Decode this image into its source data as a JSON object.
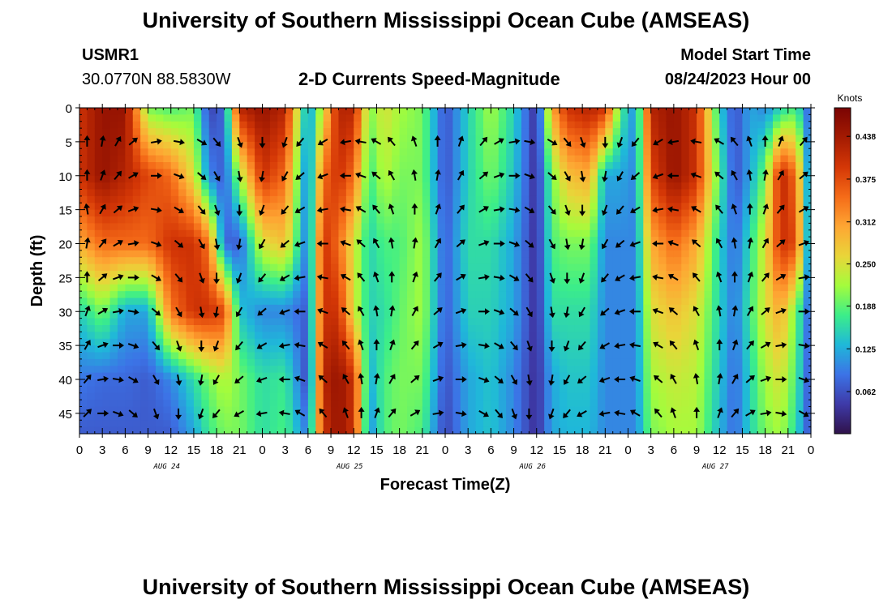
{
  "header": {
    "title": "University of Southern Mississippi Ocean Cube (AMSEAS)",
    "station": "USMR1",
    "coords": "30.0770N  88.5830W",
    "plot_title": "2-D Currents Speed-Magnitude",
    "model_start_label": "Model Start Time",
    "model_start_value": "08/24/2023 Hour 00"
  },
  "footer": {
    "title": "University of Southern Mississippi Ocean Cube (AMSEAS)"
  },
  "chart_data": {
    "type": "heatmap",
    "title": "2-D Currents Speed-Magnitude",
    "xlabel": "Forecast Time(Z)",
    "ylabel": "Depth (ft)",
    "x_range_hours": [
      0,
      96
    ],
    "y_range_ft": [
      0,
      48
    ],
    "x_tick_labels": [
      "0",
      "3",
      "6",
      "9",
      "12",
      "15",
      "18",
      "21",
      "0",
      "3",
      "6",
      "9",
      "12",
      "15",
      "18",
      "21",
      "0",
      "3",
      "6",
      "9",
      "12",
      "15",
      "18",
      "21",
      "0",
      "3",
      "6",
      "9",
      "12",
      "15",
      "18",
      "21",
      "0"
    ],
    "y_ticks": [
      0,
      5,
      10,
      15,
      20,
      25,
      30,
      35,
      40,
      45
    ],
    "date_labels": [
      {
        "label": "AUG 24",
        "hour": 12
      },
      {
        "label": "AUG 25",
        "hour": 36
      },
      {
        "label": "AUG 26",
        "hour": 60
      },
      {
        "label": "AUG 27",
        "hour": 84
      }
    ],
    "colorbar": {
      "unit": "Knots",
      "range": [
        0.0,
        0.48
      ],
      "tick_labels": [
        "0.062",
        "0.125",
        "0.188",
        "0.250",
        "0.312",
        "0.375",
        "0.438"
      ],
      "colors": [
        "#30124a",
        "#3e3aa8",
        "#3c73e6",
        "#1fb8d9",
        "#3cee89",
        "#a4fc3c",
        "#e9d539",
        "#fea633",
        "#f56b18",
        "#d43706",
        "#a41b02",
        "#7a0403"
      ]
    },
    "speed_profiles_knots": {
      "hours": [
        0,
        3,
        6,
        9,
        12,
        15,
        17,
        19,
        21,
        24,
        27,
        30,
        32,
        34,
        36,
        38,
        40,
        42,
        45,
        48,
        51,
        54,
        57,
        60,
        62,
        64,
        67,
        69,
        71,
        73,
        75,
        78,
        81,
        84,
        86,
        88,
        90,
        92,
        94,
        96
      ],
      "depths_ft": [
        0,
        10,
        20,
        30,
        40,
        48
      ],
      "values": [
        [
          0.4,
          0.4,
          0.3,
          0.15,
          0.09,
          0.07
        ],
        [
          0.45,
          0.45,
          0.35,
          0.2,
          0.08,
          0.07
        ],
        [
          0.45,
          0.42,
          0.35,
          0.12,
          0.08,
          0.07
        ],
        [
          0.2,
          0.38,
          0.35,
          0.12,
          0.07,
          0.07
        ],
        [
          0.18,
          0.35,
          0.4,
          0.34,
          0.1,
          0.07
        ],
        [
          0.2,
          0.25,
          0.4,
          0.4,
          0.16,
          0.12
        ],
        [
          0.05,
          0.1,
          0.34,
          0.4,
          0.2,
          0.17
        ],
        [
          0.08,
          0.07,
          0.08,
          0.38,
          0.23,
          0.2
        ],
        [
          0.42,
          0.22,
          0.07,
          0.14,
          0.2,
          0.2
        ],
        [
          0.45,
          0.4,
          0.25,
          0.1,
          0.16,
          0.16
        ],
        [
          0.42,
          0.35,
          0.28,
          0.1,
          0.17,
          0.18
        ],
        [
          0.1,
          0.08,
          0.08,
          0.07,
          0.05,
          0.09
        ],
        [
          0.25,
          0.35,
          0.4,
          0.4,
          0.42,
          0.4
        ],
        [
          0.42,
          0.4,
          0.35,
          0.4,
          0.45,
          0.45
        ],
        [
          0.42,
          0.35,
          0.25,
          0.25,
          0.4,
          0.4
        ],
        [
          0.2,
          0.17,
          0.15,
          0.15,
          0.12,
          0.1
        ],
        [
          0.25,
          0.23,
          0.18,
          0.16,
          0.18,
          0.18
        ],
        [
          0.22,
          0.2,
          0.18,
          0.19,
          0.2,
          0.2
        ],
        [
          0.2,
          0.2,
          0.22,
          0.22,
          0.2,
          0.18
        ],
        [
          0.06,
          0.06,
          0.07,
          0.07,
          0.06,
          0.05
        ],
        [
          0.15,
          0.15,
          0.16,
          0.15,
          0.12,
          0.12
        ],
        [
          0.22,
          0.2,
          0.16,
          0.15,
          0.14,
          0.14
        ],
        [
          0.15,
          0.14,
          0.12,
          0.12,
          0.1,
          0.1
        ],
        [
          0.03,
          0.03,
          0.03,
          0.03,
          0.03,
          0.03
        ],
        [
          0.3,
          0.2,
          0.18,
          0.16,
          0.12,
          0.12
        ],
        [
          0.4,
          0.28,
          0.2,
          0.16,
          0.14,
          0.13
        ],
        [
          0.42,
          0.3,
          0.2,
          0.16,
          0.14,
          0.13
        ],
        [
          0.4,
          0.12,
          0.1,
          0.1,
          0.1,
          0.1
        ],
        [
          0.18,
          0.12,
          0.1,
          0.1,
          0.1,
          0.1
        ],
        [
          0.1,
          0.1,
          0.1,
          0.1,
          0.1,
          0.1
        ],
        [
          0.42,
          0.38,
          0.3,
          0.25,
          0.22,
          0.2
        ],
        [
          0.45,
          0.45,
          0.35,
          0.28,
          0.24,
          0.22
        ],
        [
          0.4,
          0.4,
          0.3,
          0.25,
          0.23,
          0.22
        ],
        [
          0.15,
          0.18,
          0.15,
          0.15,
          0.14,
          0.13
        ],
        [
          0.06,
          0.06,
          0.08,
          0.09,
          0.08,
          0.08
        ],
        [
          0.12,
          0.12,
          0.16,
          0.17,
          0.15,
          0.15
        ],
        [
          0.1,
          0.2,
          0.25,
          0.25,
          0.22,
          0.2
        ],
        [
          0.15,
          0.42,
          0.4,
          0.3,
          0.25,
          0.22
        ],
        [
          0.18,
          0.35,
          0.38,
          0.2,
          0.18,
          0.16
        ],
        [
          0.06,
          0.06,
          0.06,
          0.06,
          0.05,
          0.05
        ]
      ]
    },
    "arrow_grid": {
      "hours": [
        1,
        3,
        5,
        7,
        10,
        13,
        16,
        18,
        21,
        24,
        27,
        29,
        32,
        35,
        37,
        39,
        41,
        44,
        47,
        50,
        53,
        55,
        57,
        59,
        62,
        64,
        66,
        69,
        71,
        73,
        76,
        78,
        81,
        84,
        86,
        88,
        90,
        92,
        95
      ],
      "depths_ft": [
        5,
        10,
        15,
        20,
        25,
        30,
        35,
        40,
        45
      ],
      "directions_deg_cw_from_north": [
        [
          0,
          0,
          350,
          10,
          0,
          20,
          30,
          40,
          45
        ],
        [
          10,
          20,
          30,
          40,
          50,
          60,
          70,
          80,
          90
        ],
        [
          30,
          40,
          50,
          60,
          70,
          80,
          90,
          100,
          110
        ],
        [
          50,
          60,
          70,
          80,
          90,
          100,
          110,
          120,
          130
        ],
        [
          80,
          90,
          100,
          110,
          120,
          130,
          140,
          150,
          160
        ],
        [
          100,
          110,
          120,
          130,
          140,
          150,
          160,
          170,
          180
        ],
        [
          120,
          130,
          140,
          150,
          160,
          170,
          180,
          190,
          200
        ],
        [
          140,
          150,
          160,
          170,
          180,
          190,
          200,
          210,
          220
        ],
        [
          160,
          170,
          180,
          190,
          200,
          210,
          220,
          230,
          240
        ],
        [
          180,
          190,
          200,
          210,
          220,
          230,
          240,
          250,
          260
        ],
        [
          200,
          210,
          220,
          230,
          240,
          250,
          260,
          270,
          280
        ],
        [
          220,
          230,
          240,
          250,
          260,
          270,
          280,
          290,
          300
        ],
        [
          240,
          250,
          260,
          270,
          280,
          290,
          300,
          310,
          320
        ],
        [
          260,
          270,
          280,
          290,
          300,
          310,
          320,
          330,
          340
        ],
        [
          280,
          290,
          300,
          310,
          320,
          330,
          340,
          350,
          0
        ],
        [
          300,
          310,
          320,
          330,
          340,
          350,
          0,
          10,
          20
        ],
        [
          320,
          330,
          340,
          350,
          0,
          10,
          20,
          30,
          40
        ],
        [
          340,
          350,
          0,
          10,
          20,
          30,
          40,
          50,
          60
        ],
        [
          0,
          10,
          20,
          30,
          40,
          50,
          60,
          70,
          80
        ],
        [
          20,
          30,
          40,
          50,
          60,
          70,
          80,
          90,
          100
        ],
        [
          40,
          50,
          60,
          70,
          80,
          90,
          100,
          110,
          120
        ],
        [
          60,
          70,
          80,
          90,
          100,
          110,
          120,
          130,
          140
        ],
        [
          80,
          90,
          100,
          110,
          120,
          130,
          140,
          150,
          160
        ],
        [
          100,
          110,
          120,
          130,
          140,
          150,
          160,
          170,
          180
        ],
        [
          120,
          130,
          140,
          150,
          160,
          170,
          180,
          190,
          200
        ],
        [
          140,
          150,
          160,
          170,
          180,
          190,
          200,
          210,
          220
        ],
        [
          160,
          170,
          180,
          190,
          200,
          210,
          220,
          230,
          240
        ],
        [
          180,
          190,
          200,
          210,
          220,
          230,
          240,
          250,
          260
        ],
        [
          200,
          210,
          220,
          230,
          240,
          250,
          260,
          270,
          280
        ],
        [
          220,
          230,
          240,
          250,
          260,
          270,
          280,
          290,
          300
        ],
        [
          240,
          250,
          260,
          270,
          280,
          290,
          300,
          310,
          320
        ],
        [
          260,
          270,
          280,
          290,
          300,
          310,
          320,
          330,
          340
        ],
        [
          280,
          290,
          300,
          310,
          320,
          330,
          340,
          350,
          0
        ],
        [
          300,
          310,
          320,
          330,
          340,
          350,
          0,
          10,
          20
        ],
        [
          320,
          330,
          340,
          350,
          0,
          10,
          20,
          30,
          40
        ],
        [
          340,
          350,
          0,
          10,
          20,
          30,
          40,
          50,
          60
        ],
        [
          0,
          10,
          20,
          30,
          40,
          50,
          60,
          70,
          80
        ],
        [
          20,
          30,
          40,
          50,
          60,
          70,
          80,
          90,
          100
        ],
        [
          40,
          50,
          60,
          70,
          80,
          90,
          100,
          110,
          120
        ]
      ]
    }
  }
}
